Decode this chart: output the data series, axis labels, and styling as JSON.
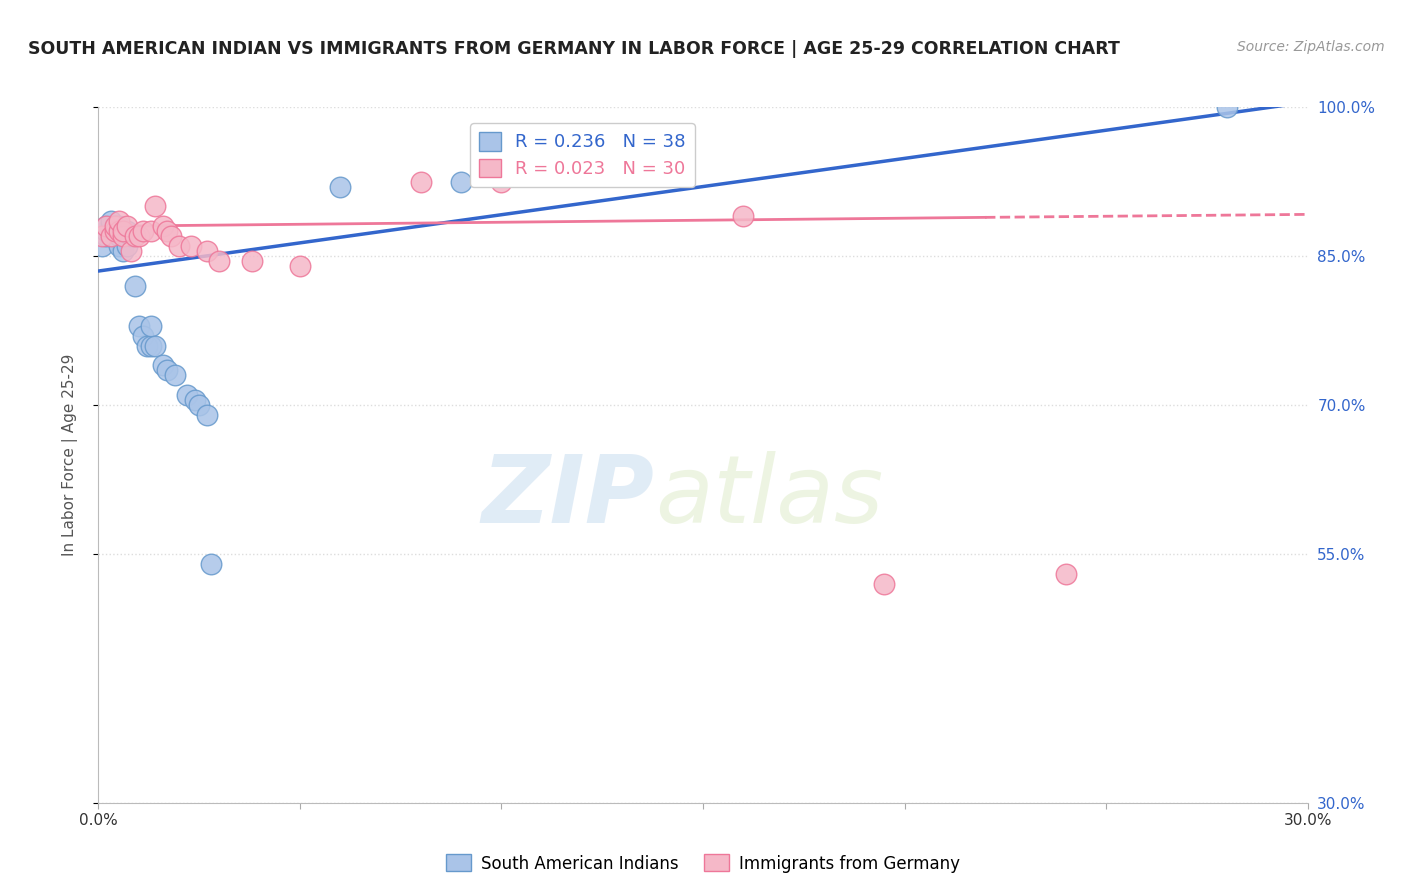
{
  "title": "SOUTH AMERICAN INDIAN VS IMMIGRANTS FROM GERMANY IN LABOR FORCE | AGE 25-29 CORRELATION CHART",
  "source": "Source: ZipAtlas.com",
  "ylabel": "In Labor Force | Age 25-29",
  "xlim": [
    0.0,
    0.3
  ],
  "ylim": [
    0.3,
    1.0
  ],
  "xticks": [
    0.0,
    0.05,
    0.1,
    0.15,
    0.2,
    0.25,
    0.3
  ],
  "xticklabels": [
    "0.0%",
    "",
    "",
    "",
    "",
    "",
    "30.0%"
  ],
  "yticks": [
    0.3,
    0.55,
    0.7,
    0.85,
    1.0
  ],
  "yticklabels": [
    "30.0%",
    "55.0%",
    "70.0%",
    "85.0%",
    "100.0%"
  ],
  "blue_r": 0.236,
  "blue_n": 38,
  "pink_r": 0.023,
  "pink_n": 30,
  "blue_label": "South American Indians",
  "pink_label": "Immigrants from Germany",
  "blue_color": "#aac4e8",
  "pink_color": "#f5b8c8",
  "blue_edge_color": "#6699CC",
  "pink_edge_color": "#ee7799",
  "blue_line_color": "#3366CC",
  "pink_line_color": "#ee7799",
  "watermark_zip": "ZIP",
  "watermark_atlas": "atlas",
  "blue_scatter_x": [
    0.001,
    0.002,
    0.002,
    0.002,
    0.003,
    0.003,
    0.003,
    0.003,
    0.004,
    0.004,
    0.004,
    0.005,
    0.005,
    0.005,
    0.006,
    0.006,
    0.006,
    0.007,
    0.007,
    0.008,
    0.009,
    0.01,
    0.011,
    0.012,
    0.013,
    0.013,
    0.014,
    0.016,
    0.017,
    0.019,
    0.022,
    0.024,
    0.025,
    0.027,
    0.028,
    0.06,
    0.09,
    0.28
  ],
  "blue_scatter_y": [
    0.86,
    0.87,
    0.875,
    0.88,
    0.87,
    0.875,
    0.88,
    0.885,
    0.87,
    0.875,
    0.88,
    0.86,
    0.87,
    0.88,
    0.855,
    0.87,
    0.875,
    0.86,
    0.875,
    0.87,
    0.82,
    0.78,
    0.77,
    0.76,
    0.76,
    0.78,
    0.76,
    0.74,
    0.735,
    0.73,
    0.71,
    0.705,
    0.7,
    0.69,
    0.54,
    0.92,
    0.925,
    1.0
  ],
  "pink_scatter_x": [
    0.001,
    0.002,
    0.003,
    0.004,
    0.004,
    0.005,
    0.005,
    0.006,
    0.006,
    0.007,
    0.008,
    0.009,
    0.01,
    0.011,
    0.013,
    0.014,
    0.016,
    0.017,
    0.018,
    0.02,
    0.023,
    0.027,
    0.03,
    0.038,
    0.05,
    0.08,
    0.1,
    0.16,
    0.195,
    0.24
  ],
  "pink_scatter_y": [
    0.87,
    0.88,
    0.87,
    0.875,
    0.88,
    0.875,
    0.885,
    0.87,
    0.875,
    0.88,
    0.855,
    0.87,
    0.87,
    0.875,
    0.875,
    0.9,
    0.88,
    0.875,
    0.87,
    0.86,
    0.86,
    0.855,
    0.845,
    0.845,
    0.84,
    0.925,
    0.925,
    0.89,
    0.52,
    0.53
  ],
  "blue_line_x0": 0.0,
  "blue_line_y0": 0.835,
  "blue_line_x1": 0.3,
  "blue_line_y1": 1.005,
  "pink_line_solid_x0": 0.0,
  "pink_line_solid_y0": 0.88,
  "pink_line_solid_x1": 0.22,
  "pink_line_solid_y1": 0.889,
  "pink_line_dash_x0": 0.22,
  "pink_line_dash_y0": 0.889,
  "pink_line_dash_x1": 0.3,
  "pink_line_dash_y1": 0.892,
  "grid_color": "#DDDDDD",
  "bg_color": "#FFFFFF",
  "title_color": "#222222",
  "axis_label_color": "#555555",
  "right_ytick_color": "#3366CC",
  "legend_blue_text": "R = 0.236   N = 38",
  "legend_pink_text": "R = 0.023   N = 30"
}
